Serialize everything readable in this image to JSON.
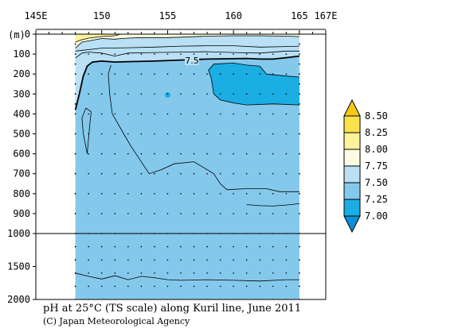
{
  "chart_data": {
    "type": "heatmap",
    "title": "pH at 25°C (TS scale) along Kuril line, June 2011",
    "credit": "(C) Japan Meteorological Agency",
    "x_axis": {
      "ticks": [
        145,
        150,
        155,
        160,
        165,
        167
      ],
      "tick_labels": [
        "145E",
        "150",
        "155",
        "160",
        "165",
        "167E"
      ],
      "range": [
        145,
        167
      ]
    },
    "y_axis": {
      "unit_label": "(m)",
      "upper_ticks": [
        0,
        100,
        200,
        300,
        400,
        500,
        600,
        700,
        800,
        900,
        1000
      ],
      "lower_ticks": [
        1500,
        2000
      ],
      "tick_labels": [
        "0",
        "100",
        "200",
        "300",
        "400",
        "500",
        "600",
        "700",
        "800",
        "900",
        "1000",
        "1500",
        "2000"
      ],
      "range": [
        0,
        2000
      ],
      "break_depth": 1000
    },
    "section": {
      "lon_start": 148,
      "lon_end": 165,
      "max_depth": 2000
    },
    "color_levels": [
      7.0,
      7.25,
      7.5,
      7.75,
      8.0,
      8.25,
      8.5
    ],
    "colorbar_labels": [
      "8.50",
      "8.25",
      "8.00",
      "7.75",
      "7.50",
      "7.25",
      "7.00"
    ],
    "colors": {
      "below_7.00": "#0a8fd8",
      "7.00-7.25": "#1aaee3",
      "7.25-7.50": "#84c9ec",
      "7.50-7.75": "#b9e0f5",
      "7.75-8.00": "#fdfbe2",
      "8.00-8.25": "#fdf39a",
      "8.25-8.50": "#fbe14c",
      "above_8.50": "#f6ca16"
    },
    "contour_labels": [
      {
        "text": "7.5",
        "lon": 156.5,
        "depth": 130
      }
    ],
    "station_longitudes": [
      148,
      149,
      150,
      151,
      152,
      153,
      154,
      155,
      156,
      157,
      158,
      159,
      160,
      161,
      162,
      163,
      164,
      165
    ],
    "legend_placement": "right",
    "grid": false
  }
}
